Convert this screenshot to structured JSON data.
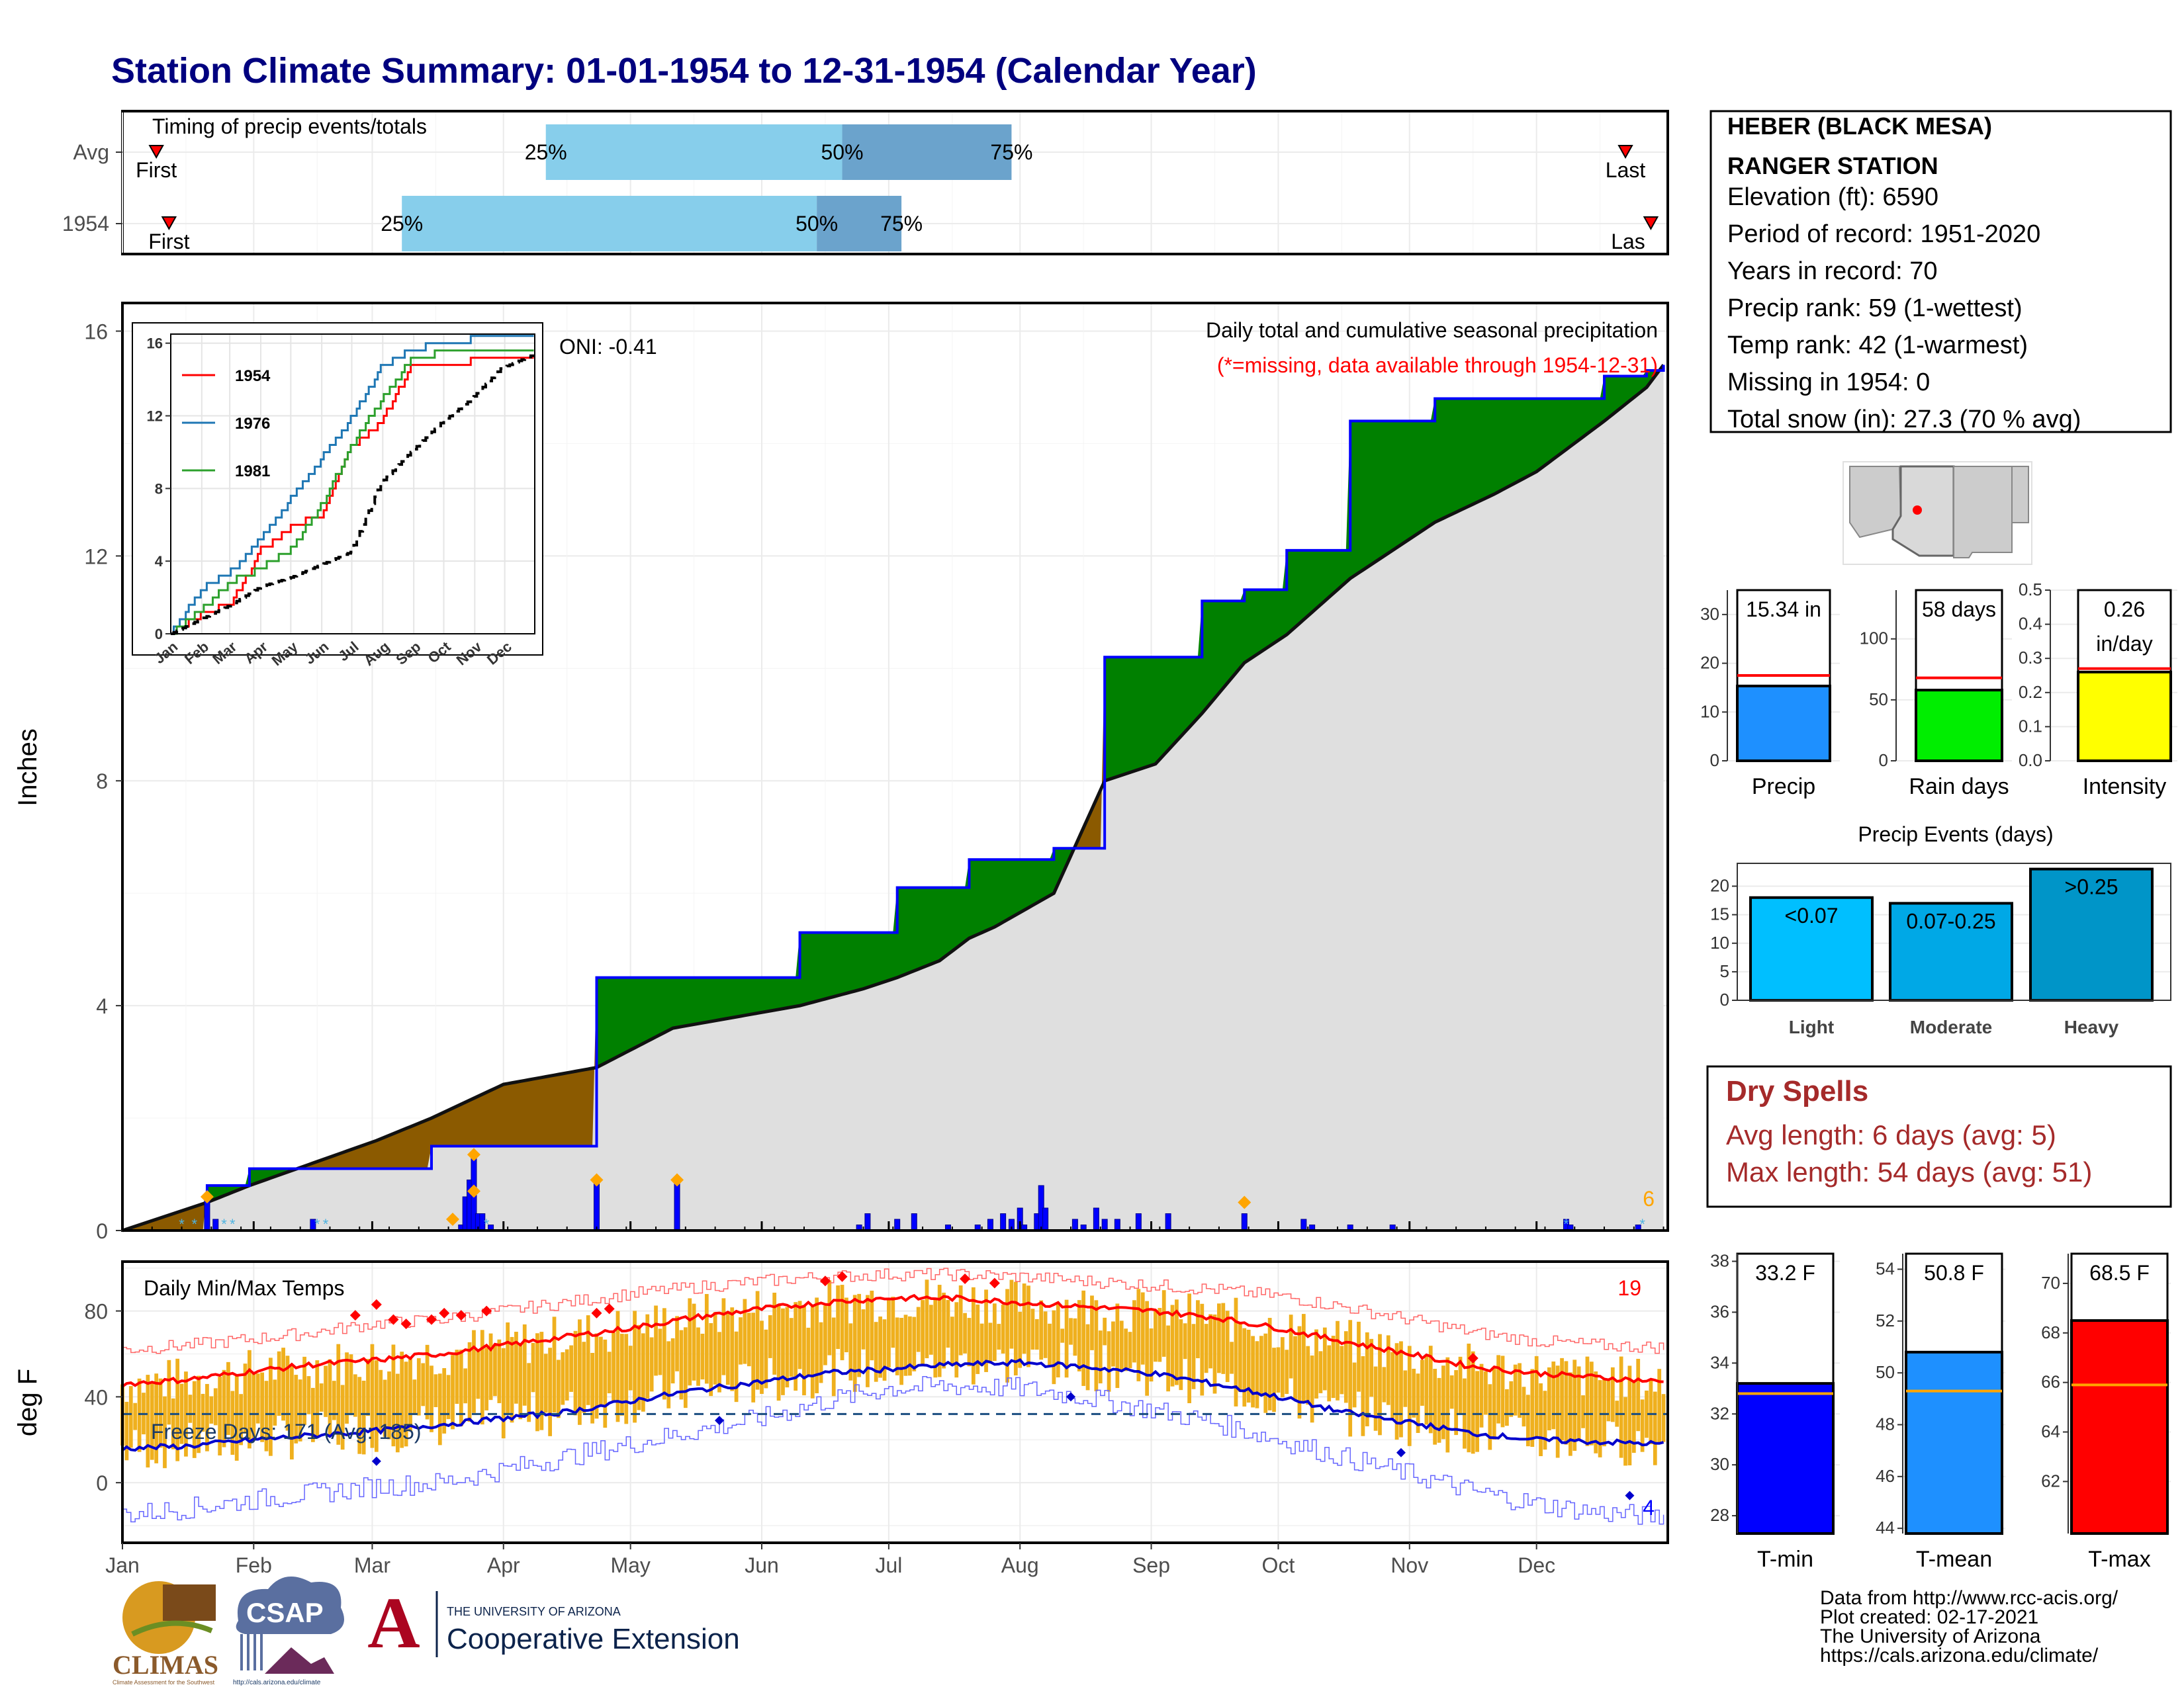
{
  "title": "Station Climate Summary: 01-01-1954 to 12-31-1954 (Calendar Year)",
  "colors": {
    "title": "#00007f",
    "precip_fill": "#dfdfdf",
    "above_avg": "#008000",
    "below_avg": "#8b5a00",
    "cum_line": "#0000ff",
    "temp_bar": "#efb01e",
    "tmax_avg": "#ff0000",
    "tmin_avg": "#0000cc",
    "quartile_light": "#87ceeb",
    "quartile_dark": "#6ba3cc",
    "dry_spells": "#a52a2a"
  },
  "timing": {
    "title": "Timing of precip events/totals",
    "rows": [
      {
        "label": "Avg",
        "first": "First",
        "last": "Last",
        "q25": "25%",
        "q50": "50%",
        "q75": "75%",
        "d_first": 8,
        "d25": 100,
        "d50": 170,
        "d75": 210,
        "d_last": 355
      },
      {
        "label": "1954",
        "first": "First",
        "last": "Las",
        "q25": "25%",
        "q50": "50%",
        "q75": "75%",
        "d_first": 11,
        "d25": 66,
        "d50": 164,
        "d75": 184,
        "d_last": 361
      }
    ]
  },
  "station": {
    "name1": "HEBER (BLACK MESA)",
    "name2": "RANGER STATION",
    "lines": [
      "Elevation (ft): 6590",
      "Period of record: 1951-2020",
      "Years in record: 70",
      "Precip rank: 59 (1-wettest)",
      "Temp rank: 42 (1-warmest)",
      "Missing in 1954: 0",
      "Total snow (in): 27.3 (70 % avg)"
    ]
  },
  "main_chart": {
    "ylabel": "Inches",
    "subtitle": "Daily total and cumulative seasonal precipitation",
    "missing_note": "(*=missing, data available through 1954-12-31)",
    "oni": "ONI: -0.41",
    "corner_count": "6",
    "yticks": [
      "0",
      "4",
      "8",
      "12",
      "16"
    ],
    "months": [
      "Jan",
      "Feb",
      "Mar",
      "Apr",
      "May",
      "Jun",
      "Jul",
      "Aug",
      "Sep",
      "Oct",
      "Nov",
      "Dec"
    ]
  },
  "chart_data": [
    {
      "type": "area",
      "title": "Daily total and cumulative seasonal precipitation",
      "ylabel": "Inches",
      "ylim": [
        0,
        16.5
      ],
      "x": [
        0,
        20,
        30,
        60,
        73,
        90,
        112,
        130,
        160,
        175,
        183,
        193,
        200,
        206,
        220,
        232,
        244,
        255,
        265,
        275,
        290,
        310,
        324,
        334,
        350,
        360,
        364
      ],
      "cumulative_1954": [
        0,
        0.8,
        1.1,
        1.1,
        1.5,
        1.5,
        4.5,
        4.5,
        5.3,
        5.3,
        6.1,
        6.1,
        6.6,
        6.6,
        6.8,
        10.2,
        10.2,
        11.2,
        11.4,
        12.1,
        14.4,
        14.8,
        14.8,
        14.8,
        15.2,
        15.3,
        15.4
      ],
      "average": [
        0,
        0.5,
        0.8,
        1.6,
        2.0,
        2.6,
        2.9,
        3.6,
        4.0,
        4.3,
        4.5,
        4.8,
        5.2,
        5.4,
        6.0,
        8.0,
        8.3,
        9.2,
        10.1,
        10.6,
        11.6,
        12.6,
        13.1,
        13.5,
        14.4,
        15.0,
        15.4
      ],
      "daily": [
        [
          20,
          0.6
        ],
        [
          22,
          0.2
        ],
        [
          45,
          0.2
        ],
        [
          80,
          0.1
        ],
        [
          81,
          0.6
        ],
        [
          82,
          0.9
        ],
        [
          83,
          1.3
        ],
        [
          84,
          0.3
        ],
        [
          85,
          0.3
        ],
        [
          87,
          0.1
        ],
        [
          112,
          0.9
        ],
        [
          131,
          0.9
        ],
        [
          174,
          0.1
        ],
        [
          176,
          0.3
        ],
        [
          183,
          0.2
        ],
        [
          187,
          0.3
        ],
        [
          195,
          0.1
        ],
        [
          202,
          0.1
        ],
        [
          205,
          0.2
        ],
        [
          208,
          0.3
        ],
        [
          210,
          0.2
        ],
        [
          212,
          0.4
        ],
        [
          213,
          0.1
        ],
        [
          216,
          0.3
        ],
        [
          217,
          0.8
        ],
        [
          218,
          0.4
        ],
        [
          225,
          0.2
        ],
        [
          227,
          0.1
        ],
        [
          230,
          0.4
        ],
        [
          232,
          0.2
        ],
        [
          235,
          0.2
        ],
        [
          240,
          0.3
        ],
        [
          247,
          0.3
        ],
        [
          265,
          0.3
        ],
        [
          279,
          0.2
        ],
        [
          281,
          0.1
        ],
        [
          290,
          0.1
        ],
        [
          300,
          0.1
        ],
        [
          341,
          0.2
        ],
        [
          342,
          0.1
        ],
        [
          358,
          0.1
        ]
      ]
    },
    {
      "type": "line",
      "title": "",
      "xlabels": [
        "Jan",
        "Feb",
        "Mar",
        "Apr",
        "May",
        "Jun",
        "Jul",
        "Aug",
        "Sep",
        "Oct",
        "Nov",
        "Dec"
      ],
      "ylim": [
        0,
        16.5
      ],
      "yticks": [
        0,
        4,
        8,
        12,
        16
      ],
      "series": [
        {
          "name": "1954",
          "x": [
            0,
            30,
            60,
            90,
            120,
            150,
            180,
            210,
            240,
            270,
            300,
            330,
            364
          ],
          "values": [
            0,
            1.1,
            1.6,
            4.6,
            5.9,
            6.5,
            10.2,
            11.7,
            14.6,
            14.8,
            15.0,
            15.2,
            15.4
          ]
        },
        {
          "name": "1976",
          "x": [
            0,
            30,
            60,
            90,
            120,
            150,
            180,
            210,
            240,
            270,
            300,
            330,
            364
          ],
          "values": [
            0,
            2.4,
            3.4,
            5.2,
            7.4,
            9.6,
            11.8,
            14.6,
            15.6,
            16.0,
            16.2,
            16.5,
            16.6
          ]
        },
        {
          "name": "1981",
          "x": [
            0,
            30,
            60,
            90,
            120,
            150,
            180,
            210,
            240,
            270,
            300,
            330,
            364
          ],
          "values": [
            0,
            1.3,
            2.9,
            3.6,
            4.6,
            7.0,
            10.3,
            12.8,
            15.1,
            15.5,
            15.6,
            15.7,
            15.8
          ]
        },
        {
          "name": "",
          "x": [
            0,
            30,
            60,
            90,
            120,
            150,
            180,
            210,
            240,
            270,
            300,
            330,
            364
          ],
          "values": [
            0,
            0.8,
            1.6,
            2.6,
            3.1,
            3.8,
            4.5,
            8.3,
            10.0,
            11.6,
            12.9,
            14.6,
            15.4
          ]
        }
      ]
    },
    {
      "type": "bar",
      "title": "",
      "categories": [
        "Precip"
      ],
      "values": [
        15.34
      ],
      "average": [
        17.5
      ],
      "ylim": [
        0,
        35
      ],
      "yticks": [
        0,
        10,
        20,
        30
      ],
      "value_label": "15.34 in"
    },
    {
      "type": "bar",
      "title": "",
      "categories": [
        "Rain days"
      ],
      "values": [
        58
      ],
      "average": [
        68
      ],
      "ylim": [
        0,
        140
      ],
      "yticks": [
        0,
        50,
        100
      ],
      "value_label": "58 days"
    },
    {
      "type": "bar",
      "title": "",
      "categories": [
        "Intensity"
      ],
      "values": [
        0.26
      ],
      "average": [
        0.27
      ],
      "ylim": [
        0,
        0.5
      ],
      "yticks": [
        0.0,
        0.1,
        0.2,
        0.3,
        0.4,
        0.5
      ],
      "value_label": [
        "0.26",
        "in/day"
      ]
    },
    {
      "type": "bar",
      "title": "Precip Events (days)",
      "categories": [
        "Light",
        "Moderate",
        "Heavy"
      ],
      "values": [
        18,
        17,
        23
      ],
      "labels": [
        "<0.07",
        "0.07-0.25",
        ">0.25"
      ],
      "ylim": [
        0,
        24
      ],
      "yticks": [
        0,
        5,
        10,
        15,
        20
      ]
    },
    {
      "type": "bar",
      "title": "Daily Min/Max Temps",
      "ylabel": "deg F",
      "ylim": [
        -28,
        103
      ],
      "yticks": [
        0,
        40,
        80
      ],
      "annotations": [
        "Freeze Days: 171 (Avg: 185)",
        "19",
        "4"
      ],
      "freeze_line": 32,
      "x": [
        0,
        15,
        31,
        45,
        59,
        75,
        90,
        105,
        120,
        135,
        151,
        166,
        181,
        196,
        212,
        227,
        243,
        258,
        273,
        288,
        304,
        319,
        334,
        349,
        364
      ],
      "tmax_mean": [
        46,
        48,
        52,
        55,
        57,
        60,
        64,
        68,
        72,
        77,
        81,
        84,
        86,
        86,
        84,
        82,
        80,
        77,
        72,
        66,
        60,
        54,
        51,
        49,
        47
      ],
      "tmin_mean": [
        16,
        17,
        20,
        22,
        24,
        27,
        30,
        33,
        38,
        43,
        47,
        51,
        53,
        55,
        56,
        54,
        51,
        46,
        40,
        33,
        28,
        23,
        20,
        19,
        18
      ],
      "tmax_record": [
        62,
        64,
        67,
        70,
        74,
        76,
        80,
        84,
        88,
        91,
        94,
        96,
        97,
        97,
        96,
        94,
        92,
        90,
        87,
        82,
        76,
        70,
        66,
        64,
        63
      ],
      "tmin_record": [
        -15,
        -12,
        -8,
        -5,
        -2,
        0,
        6,
        12,
        18,
        24,
        30,
        38,
        44,
        45,
        44,
        40,
        34,
        28,
        20,
        12,
        4,
        -4,
        -10,
        -14,
        -16
      ]
    },
    {
      "type": "bar",
      "title": "",
      "categories": [
        "T-min"
      ],
      "values": [
        33.2
      ],
      "average": [
        32.8
      ],
      "ylim": [
        27.3,
        38.3
      ],
      "yticks": [
        28,
        30,
        32,
        34,
        36,
        38
      ],
      "value_label": "33.2 F"
    },
    {
      "type": "bar",
      "title": "",
      "categories": [
        "T-mean"
      ],
      "values": [
        50.8
      ],
      "average": [
        49.3
      ],
      "ylim": [
        43.8,
        54.6
      ],
      "yticks": [
        44,
        46,
        48,
        50,
        52,
        54
      ],
      "value_label": "50.8 F"
    },
    {
      "type": "bar",
      "title": "",
      "categories": [
        "T-max"
      ],
      "values": [
        68.5
      ],
      "average": [
        65.9
      ],
      "ylim": [
        59.9,
        71.2
      ],
      "yticks": [
        62,
        64,
        66,
        68,
        70
      ],
      "value_label": "68.5 F"
    }
  ],
  "map_label": "",
  "events_title": "Precip Events (days)",
  "dry_spells": {
    "title": "Dry Spells",
    "avg": "Avg length: 6 days (avg: 5)",
    "max": "Max length: 54 days (avg: 51)"
  },
  "temps": {
    "title": "Daily Min/Max Temps",
    "ylabel": "deg F",
    "freeze": "Freeze Days: 171 (Avg: 185)",
    "count_top": "19",
    "count_bottom": "4",
    "yticks": [
      "0",
      "40",
      "80"
    ]
  },
  "footer": {
    "lines": [
      "Data from http://www.rcc-acis.org/",
      "Plot created: 02-17-2021",
      "The University of Arizona",
      "https://cals.arizona.edu/climate/"
    ]
  },
  "logos": {
    "climas": "CLIMAS",
    "climas_sub": "Climate Assessment for the Southwest",
    "csap": "CSAP",
    "csap_url": "http://cals.arizona.edu/climate",
    "ua_small": "THE UNIVERSITY OF ARIZONA",
    "ua_big": "Cooperative Extension"
  }
}
